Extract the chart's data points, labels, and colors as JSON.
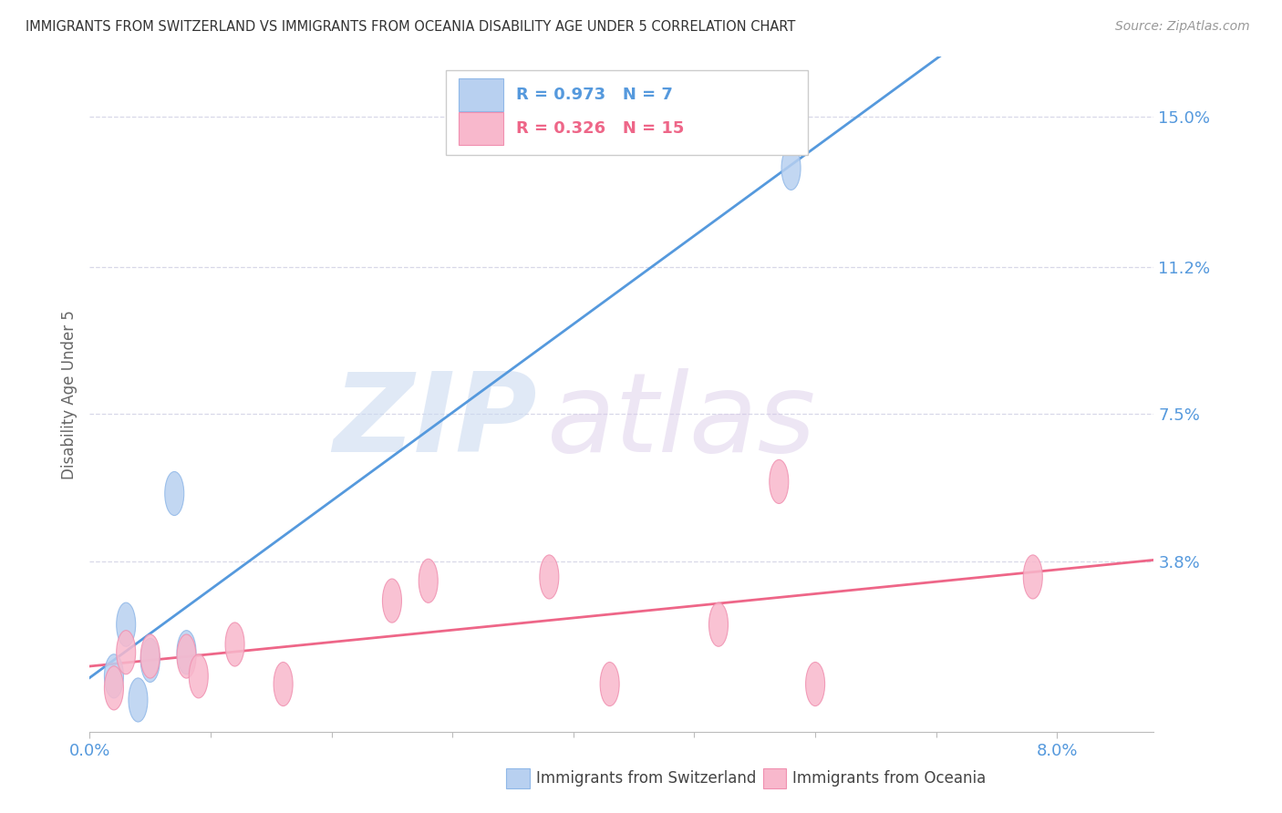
{
  "title": "IMMIGRANTS FROM SWITZERLAND VS IMMIGRANTS FROM OCEANIA DISABILITY AGE UNDER 5 CORRELATION CHART",
  "source": "Source: ZipAtlas.com",
  "ylabel": "Disability Age Under 5",
  "xlim": [
    0.0,
    0.088
  ],
  "ylim": [
    -0.005,
    0.165
  ],
  "xtick_labels": [
    "0.0%",
    "8.0%"
  ],
  "xtick_positions": [
    0.0,
    0.08
  ],
  "ytick_labels": [
    "3.8%",
    "7.5%",
    "11.2%",
    "15.0%"
  ],
  "ytick_positions": [
    0.038,
    0.075,
    0.112,
    0.15
  ],
  "background_color": "#ffffff",
  "grid_color": "#d8d8e8",
  "swiss_fill_color": "#b8d0f0",
  "swiss_edge_color": "#90b8e8",
  "oceania_fill_color": "#f8b8cc",
  "oceania_edge_color": "#f090b0",
  "swiss_line_color": "#5599dd",
  "oceania_line_color": "#ee6688",
  "swiss_R": "0.973",
  "swiss_N": "7",
  "oceania_R": "0.326",
  "oceania_N": "15",
  "swiss_points": [
    [
      0.002,
      0.009
    ],
    [
      0.003,
      0.022
    ],
    [
      0.004,
      0.003
    ],
    [
      0.005,
      0.013
    ],
    [
      0.007,
      0.055
    ],
    [
      0.008,
      0.015
    ],
    [
      0.058,
      0.137
    ]
  ],
  "oceania_points": [
    [
      0.002,
      0.006
    ],
    [
      0.003,
      0.015
    ],
    [
      0.005,
      0.014
    ],
    [
      0.008,
      0.014
    ],
    [
      0.009,
      0.009
    ],
    [
      0.012,
      0.017
    ],
    [
      0.016,
      0.007
    ],
    [
      0.025,
      0.028
    ],
    [
      0.028,
      0.033
    ],
    [
      0.038,
      0.034
    ],
    [
      0.043,
      0.007
    ],
    [
      0.052,
      0.022
    ],
    [
      0.057,
      0.058
    ],
    [
      0.06,
      0.007
    ],
    [
      0.078,
      0.034
    ]
  ],
  "watermark_zip": "ZIP",
  "watermark_atlas": "atlas",
  "legend_label_swiss": "Immigrants from Switzerland",
  "legend_label_oceania": "Immigrants from Oceania"
}
